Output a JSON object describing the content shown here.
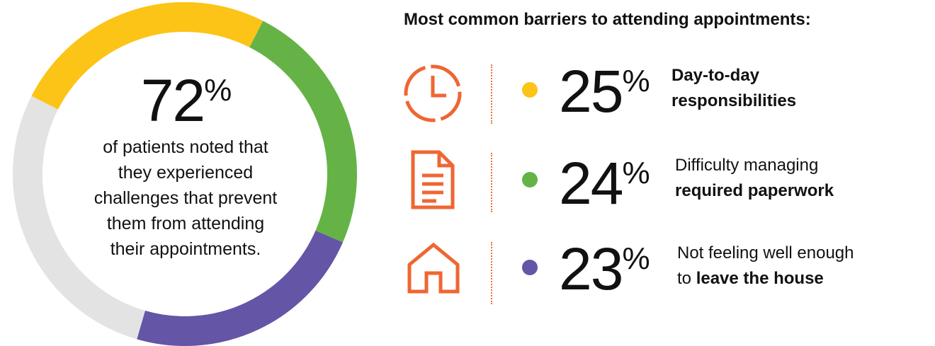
{
  "headline": {
    "value": "72",
    "pct_sign": "%",
    "caption_lines": [
      "of patients noted that",
      "they experienced",
      "challenges that prevent",
      "them from attending",
      "their appointments."
    ]
  },
  "colors": {
    "yellow": "#fbc416",
    "green": "#65b346",
    "purple": "#6455a6",
    "gray": "#e3e3e3",
    "orange": "#ef6633"
  },
  "chart_data": {
    "type": "pie",
    "title": "Most common barriers to attending appointments:",
    "slices": [
      {
        "label": "Day-to-day responsibilities",
        "value": 25,
        "color": "#fbc416"
      },
      {
        "label": "Difficulty managing required paperwork",
        "value": 24,
        "color": "#65b346"
      },
      {
        "label": "Not feeling well enough to leave the house",
        "value": 23,
        "color": "#6455a6"
      },
      {
        "label": "",
        "value": 28,
        "color": "#e3e3e3"
      }
    ]
  },
  "barriers": [
    {
      "icon": "clock-icon",
      "value": "25",
      "pct_sign": "%",
      "line1": "Day-to-day",
      "line2_normal": "",
      "line2_bold": "responsibilities",
      "line1_bold": true,
      "color": "#fbc416"
    },
    {
      "icon": "document-icon",
      "value": "24",
      "pct_sign": "%",
      "line1": "Difficulty managing",
      "line2_normal": "",
      "line2_bold": "required paperwork",
      "line1_bold": false,
      "color": "#65b346"
    },
    {
      "icon": "house-icon",
      "value": "23",
      "pct_sign": "%",
      "line1": "Not feeling well enough",
      "line2_normal": "to ",
      "line2_bold": "leave the house",
      "line1_bold": false,
      "color": "#6455a6"
    }
  ]
}
